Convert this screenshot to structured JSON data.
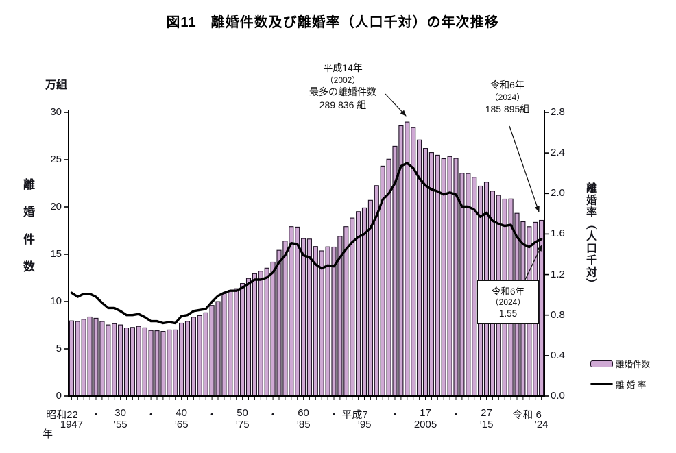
{
  "title": "図11　離婚件数及び離婚率（人口千対）の年次推移",
  "left_axis": {
    "unit": "万組",
    "title": "離婚件数",
    "tick_labels": [
      "0",
      "5",
      "10",
      "15",
      "20",
      "25",
      "30"
    ],
    "tick_values": [
      0,
      5,
      10,
      15,
      20,
      25,
      30
    ]
  },
  "right_axis": {
    "title": "離婚率（人口千対）",
    "tick_labels": [
      "0.0",
      "0.4",
      "0.8",
      "1.2",
      "1.6",
      "2.0",
      "2.4",
      "2.8"
    ],
    "tick_values": [
      0,
      0.4,
      0.8,
      1.2,
      1.6,
      2.0,
      2.4,
      2.8
    ]
  },
  "x_axis": {
    "suffix": "年",
    "era_labels": [
      {
        "text": "昭和22",
        "year": 1947
      },
      {
        "text": "・",
        "year": 1951
      },
      {
        "text": "30",
        "year": 1955
      },
      {
        "text": "・",
        "year": 1960
      },
      {
        "text": "40",
        "year": 1965
      },
      {
        "text": "・",
        "year": 1970
      },
      {
        "text": "50",
        "year": 1975
      },
      {
        "text": "・",
        "year": 1980
      },
      {
        "text": "60",
        "year": 1985
      },
      {
        "text": "・",
        "year": 1990
      },
      {
        "text": "平成7",
        "year": 1995
      },
      {
        "text": "・",
        "year": 2000
      },
      {
        "text": "17",
        "year": 2005
      },
      {
        "text": "・",
        "year": 2010
      },
      {
        "text": "27",
        "year": 2015
      },
      {
        "text": "令和 6",
        "year": 2024
      }
    ],
    "west_labels": [
      {
        "text": "1947",
        "year": 1947
      },
      {
        "text": "’55",
        "year": 1955
      },
      {
        "text": "’65",
        "year": 1965
      },
      {
        "text": "’75",
        "year": 1975
      },
      {
        "text": "’85",
        "year": 1985
      },
      {
        "text": "’95",
        "year": 1995
      },
      {
        "text": "2005",
        "year": 2005
      },
      {
        "text": "’15",
        "year": 2015
      },
      {
        "text": "’24",
        "year": 2024
      }
    ]
  },
  "annotations": {
    "peak": {
      "lines": [
        "平成14年",
        "（2002）",
        "最多の離婚件数",
        "289 836 組"
      ]
    },
    "latest_count": {
      "lines": [
        "令和6年",
        "（2024）",
        "185 895組"
      ]
    },
    "latest_rate": {
      "lines": [
        "令和6年",
        "（2024）",
        "1.55"
      ]
    }
  },
  "legend": {
    "bar_label": "離婚件数",
    "line_label": "離 婚 率"
  },
  "colors": {
    "bar_fill": "#cfa9d4",
    "bar_stroke": "#1c0f22",
    "line": "#000000",
    "axis": "#000000",
    "text": "#15151c"
  },
  "chart_data": {
    "type": "bar",
    "title": "離婚件数及び離婚率（人口千対）の年次推移",
    "xlabel": "年",
    "left_ylabel": "離婚件数（万組）",
    "right_ylabel": "離婚率（人口千対）",
    "left_ylim": [
      0,
      30
    ],
    "right_ylim": [
      0,
      2.8
    ],
    "grid": false,
    "legend_position": "right-bottom",
    "years": [
      1947,
      1948,
      1949,
      1950,
      1951,
      1952,
      1953,
      1954,
      1955,
      1956,
      1957,
      1958,
      1959,
      1960,
      1961,
      1962,
      1963,
      1964,
      1965,
      1966,
      1967,
      1968,
      1969,
      1970,
      1971,
      1972,
      1973,
      1974,
      1975,
      1976,
      1977,
      1978,
      1979,
      1980,
      1981,
      1982,
      1983,
      1984,
      1985,
      1986,
      1987,
      1988,
      1989,
      1990,
      1991,
      1992,
      1993,
      1994,
      1995,
      1996,
      1997,
      1998,
      1999,
      2000,
      2001,
      2002,
      2003,
      2004,
      2005,
      2006,
      2007,
      2008,
      2009,
      2010,
      2011,
      2012,
      2013,
      2014,
      2015,
      2016,
      2017,
      2018,
      2019,
      2020,
      2021,
      2022,
      2023,
      2024
    ],
    "series": [
      {
        "name": "離婚件数",
        "type": "bar",
        "unit": "万組",
        "values": [
          7.96,
          7.9,
          8.13,
          8.37,
          8.23,
          7.9,
          7.53,
          7.66,
          7.53,
          7.2,
          7.26,
          7.38,
          7.22,
          6.94,
          6.91,
          6.84,
          7.0,
          7.0,
          7.72,
          7.91,
          8.35,
          8.52,
          8.81,
          9.59,
          9.99,
          10.84,
          11.19,
          11.36,
          11.91,
          12.45,
          12.95,
          13.21,
          13.53,
          14.17,
          15.42,
          16.4,
          17.92,
          17.87,
          16.66,
          16.61,
          15.82,
          15.36,
          15.78,
          15.76,
          16.9,
          17.92,
          18.83,
          19.51,
          19.9,
          20.7,
          22.26,
          24.32,
          25.05,
          26.42,
          28.59,
          28.98,
          28.39,
          27.08,
          26.19,
          25.75,
          25.48,
          25.11,
          25.34,
          25.14,
          23.57,
          23.54,
          23.14,
          22.21,
          22.62,
          21.68,
          21.23,
          20.83,
          20.85,
          19.33,
          18.44,
          17.91,
          18.38,
          18.59
        ]
      },
      {
        "name": "離婚率",
        "type": "line",
        "unit": "人口千対",
        "values": [
          1.02,
          0.98,
          1.01,
          1.01,
          0.98,
          0.92,
          0.87,
          0.87,
          0.84,
          0.8,
          0.8,
          0.81,
          0.78,
          0.74,
          0.74,
          0.72,
          0.73,
          0.72,
          0.79,
          0.8,
          0.84,
          0.85,
          0.86,
          0.93,
          0.99,
          1.02,
          1.04,
          1.04,
          1.07,
          1.11,
          1.15,
          1.15,
          1.17,
          1.22,
          1.32,
          1.39,
          1.51,
          1.5,
          1.39,
          1.37,
          1.3,
          1.26,
          1.29,
          1.28,
          1.37,
          1.45,
          1.52,
          1.57,
          1.6,
          1.66,
          1.78,
          1.94,
          2.0,
          2.1,
          2.27,
          2.3,
          2.25,
          2.15,
          2.08,
          2.04,
          2.02,
          1.99,
          2.01,
          1.99,
          1.87,
          1.87,
          1.84,
          1.77,
          1.81,
          1.73,
          1.7,
          1.68,
          1.69,
          1.57,
          1.5,
          1.47,
          1.52,
          1.55
        ]
      }
    ],
    "annotated_points": [
      {
        "year": 2002,
        "count": "289 836",
        "note": "最多の離婚件数"
      },
      {
        "year": 2024,
        "count": "185 895",
        "rate": 1.55
      }
    ]
  }
}
